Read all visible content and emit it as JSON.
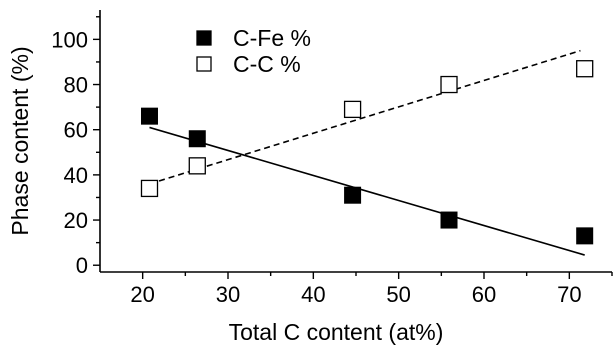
{
  "chart_data": {
    "type": "scatter",
    "xlabel": "Total C content (at%)",
    "ylabel": "Phase content (%)",
    "xlim": [
      15,
      75
    ],
    "ylim": [
      -3,
      113
    ],
    "xticks": [
      20,
      30,
      40,
      50,
      60,
      70
    ],
    "yticks": [
      0,
      20,
      40,
      60,
      80,
      100
    ],
    "legend_position": "top-left",
    "series": [
      {
        "name": "C-Fe %",
        "marker": "filled-square",
        "color": "#000000",
        "points": [
          {
            "x": 20.8,
            "y": 66
          },
          {
            "x": 26.4,
            "y": 56
          },
          {
            "x": 44.6,
            "y": 31
          },
          {
            "x": 55.9,
            "y": 20
          },
          {
            "x": 71.8,
            "y": 13
          }
        ],
        "fit": {
          "style": "solid",
          "x": [
            20.8,
            71.8
          ],
          "y": [
            61,
            4.5
          ]
        }
      },
      {
        "name": "C-C %",
        "marker": "open-square",
        "color": "#000000",
        "points": [
          {
            "x": 20.8,
            "y": 34
          },
          {
            "x": 26.4,
            "y": 44
          },
          {
            "x": 44.6,
            "y": 69
          },
          {
            "x": 55.9,
            "y": 80
          },
          {
            "x": 71.8,
            "y": 87
          }
        ],
        "fit": {
          "style": "dashed",
          "x": [
            20.8,
            71.3
          ],
          "y": [
            36,
            95
          ]
        }
      }
    ]
  }
}
